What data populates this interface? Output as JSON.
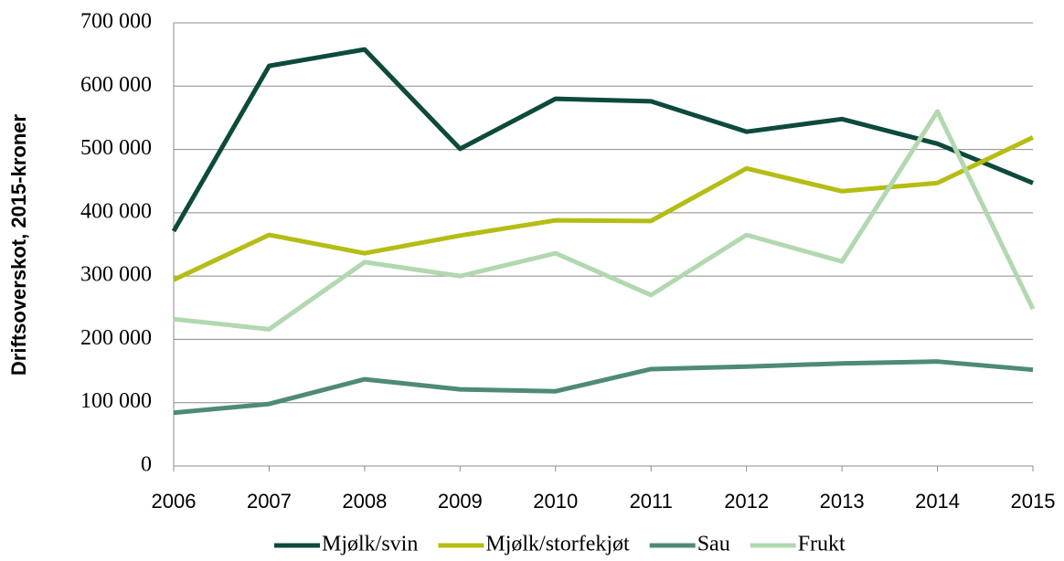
{
  "chart_data": {
    "type": "line",
    "y_label": "Driftsoverskot, 2015-kroner",
    "categories": [
      "2006",
      "2007",
      "2008",
      "2009",
      "2010",
      "2011",
      "2012",
      "2013",
      "2014",
      "2015"
    ],
    "series": [
      {
        "name": "Mjølk/svin",
        "color": "#0d4a3c",
        "values": [
          371000,
          632000,
          658000,
          501000,
          580000,
          576000,
          528000,
          548000,
          509000,
          447000
        ]
      },
      {
        "name": "Mjølk/storfekjøt",
        "color": "#b5bd14",
        "values": [
          294000,
          365000,
          336000,
          364000,
          388000,
          387000,
          470000,
          434000,
          447000,
          519000
        ]
      },
      {
        "name": "Sau",
        "color": "#4e8a78",
        "values": [
          84000,
          98000,
          137000,
          121000,
          118000,
          153000,
          157000,
          162000,
          165000,
          152000
        ]
      },
      {
        "name": "Frukt",
        "color": "#b2d8b0",
        "values": [
          232000,
          216000,
          322000,
          300000,
          336000,
          270000,
          365000,
          323000,
          560000,
          248000
        ]
      }
    ],
    "ylim": [
      0,
      700000
    ],
    "yticks": [
      0,
      {
        "value": 100000,
        "label": "100 000"
      },
      {
        "value": 200000,
        "label": "200 000"
      },
      {
        "value": 300000,
        "label": "300 000"
      },
      {
        "value": 400000,
        "label": "400 000"
      },
      {
        "value": 500000,
        "label": "500 000"
      },
      {
        "value": 600000,
        "label": "600 000"
      },
      {
        "value": 700000,
        "label": "700 000"
      }
    ],
    "grid": true,
    "legend": "bottom"
  }
}
